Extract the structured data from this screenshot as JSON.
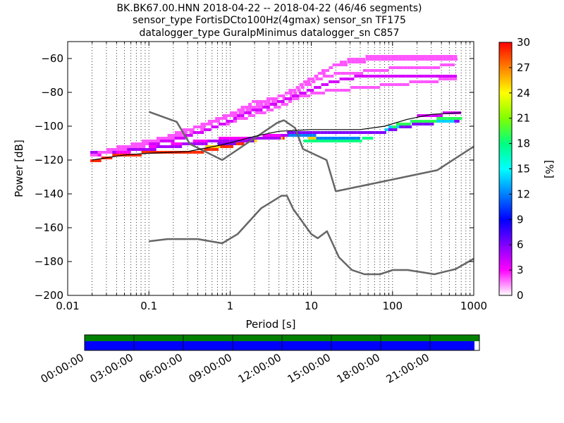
{
  "title_lines": [
    "BK.BK67.00.HNN   2018-04-22 -- 2018-04-22  (46/46 segments)",
    "sensor_type FortisDCto100Hz(4gmax) sensor_sn TF175",
    "datalogger_type GuralpMinimus datalogger_sn C857"
  ],
  "chart_data": {
    "type": "heatmap",
    "xlabel": "Period [s]",
    "ylabel": "Power [dB]",
    "x_scale": "log",
    "xlim": [
      0.01,
      1000
    ],
    "ylim": [
      -200,
      -50
    ],
    "x_ticks": [
      0.01,
      0.1,
      1,
      10,
      100,
      1000
    ],
    "x_tick_labels": [
      "0.01",
      "0.1",
      "1",
      "10",
      "100",
      "1000"
    ],
    "y_ticks": [
      -200,
      -180,
      -160,
      -140,
      -120,
      -100,
      -80,
      -60
    ],
    "y_tick_labels": [
      "−200",
      "−180",
      "−160",
      "−140",
      "−120",
      "−100",
      "−80",
      "−60"
    ],
    "grid": "dotted vertical lines at each minor log tick",
    "colorbar": {
      "label": "[%]",
      "min": 0,
      "max": 30,
      "ticks": [
        0,
        3,
        6,
        9,
        12,
        15,
        18,
        21,
        24,
        27,
        30
      ],
      "colors": [
        "#ffffff",
        "#ff00ff",
        "#8000ff",
        "#0000ff",
        "#0080ff",
        "#00ffff",
        "#00ff80",
        "#80ff00",
        "#ffff00",
        "#ff8000",
        "#ff0000"
      ]
    },
    "noise_models": [
      {
        "name": "NHNM",
        "color": "#666666",
        "x": [
          0.1,
          0.22,
          0.32,
          0.8,
          3.8,
          4.6,
          6.3,
          7.9,
          15.4,
          20,
          354.8,
          1000
        ],
        "y": [
          -91.5,
          -97.4,
          -110.5,
          -120,
          -98,
          -96.5,
          -101,
          -113.5,
          -120,
          -138.5,
          -126,
          -112
        ]
      },
      {
        "name": "NLNM",
        "color": "#666666",
        "x": [
          0.1,
          0.17,
          0.4,
          0.8,
          1.24,
          2.4,
          4.3,
          5,
          6,
          10,
          12,
          15.6,
          21.9,
          31.6,
          45,
          70,
          101,
          154,
          328,
          600,
          1000
        ],
        "y": [
          -168,
          -166.7,
          -166.7,
          -169.2,
          -163.7,
          -148.6,
          -141.1,
          -141.1,
          -149,
          -163.8,
          -166.2,
          -162.1,
          -177.5,
          -185,
          -187.5,
          -187.5,
          -185,
          -185,
          -187.5,
          -184.4,
          -178.3
        ]
      },
      {
        "name": "mode",
        "color": "#000000",
        "x": [
          0.02,
          0.05,
          0.1,
          0.3,
          0.8,
          2,
          4,
          10,
          40,
          80,
          150,
          300,
          700
        ],
        "y": [
          -120,
          -117,
          -116,
          -115,
          -111,
          -106,
          -103,
          -102,
          -102,
          -100,
          -96,
          -93,
          -92
        ]
      }
    ],
    "density_bands": [
      {
        "pct": 29,
        "x": [
          0.019,
          0.04,
          0.1,
          0.4,
          1,
          2,
          5,
          8
        ],
        "y": [
          -121,
          -117,
          -116,
          -115,
          -112,
          -108,
          -106,
          -106
        ]
      },
      {
        "pct": 25,
        "x": [
          0.5,
          1,
          2,
          5,
          8,
          12
        ],
        "y": [
          -113,
          -110,
          -108,
          -106,
          -106,
          -107
        ]
      },
      {
        "pct": 12,
        "x": [
          5,
          10,
          20,
          40
        ],
        "y": [
          -105,
          -106,
          -107,
          -107
        ]
      },
      {
        "pct": 18,
        "x": [
          8,
          12,
          20,
          40,
          60
        ],
        "y": [
          -108,
          -108,
          -109,
          -108,
          -106
        ]
      },
      {
        "pct": 6,
        "x": [
          0.7,
          1.5,
          3,
          6,
          10,
          20,
          40,
          80,
          150,
          300,
          700
        ],
        "y": [
          -111,
          -109,
          -106,
          -104,
          -104,
          -104,
          -104,
          -103,
          -100,
          -98,
          -97
        ]
      },
      {
        "pct": 14,
        "x": [
          80,
          150,
          300,
          700
        ],
        "y": [
          -102,
          -98,
          -97,
          -96
        ]
      },
      {
        "pct": 19,
        "x": [
          100,
          200,
          400,
          700
        ],
        "y": [
          -100,
          -97,
          -96,
          -95
        ]
      },
      {
        "pct": 4,
        "x": [
          200,
          400,
          700
        ],
        "y": [
          -94,
          -93,
          -92
        ]
      },
      {
        "pct": 3,
        "x": [
          0.019,
          0.05,
          0.1,
          0.3,
          0.7,
          1.5,
          3,
          5
        ],
        "y": [
          -117,
          -115,
          -113,
          -110,
          -108,
          -107,
          -106,
          -105
        ]
      },
      {
        "pct": 5,
        "x": [
          0.019,
          0.05,
          0.12,
          0.3,
          0.7,
          1.5,
          3,
          5
        ],
        "y": [
          -116,
          -114,
          -113,
          -111,
          -109,
          -108,
          -107,
          -106
        ]
      },
      {
        "pct": 2,
        "x": [
          0.019,
          0.04,
          0.1,
          0.2,
          0.5,
          1,
          2,
          4,
          7,
          12,
          30,
          80,
          200,
          600
        ],
        "y": [
          -117,
          -114,
          -111,
          -107,
          -102,
          -98,
          -93,
          -89,
          -83,
          -80,
          -78,
          -76,
          -74,
          -72
        ]
      },
      {
        "pct": 2,
        "x": [
          0.03,
          0.06,
          0.15,
          0.3,
          0.6,
          1.2,
          2.5,
          5,
          8,
          15,
          40,
          100,
          300,
          600
        ],
        "y": [
          -114,
          -112,
          -108,
          -103,
          -98,
          -93,
          -88,
          -84,
          -77,
          -70,
          -68,
          -66,
          -65,
          -64
        ]
      },
      {
        "pct": 2,
        "x": [
          0.04,
          0.1,
          0.25,
          0.6,
          1.5,
          3,
          6,
          10,
          20,
          50,
          150,
          400,
          600
        ],
        "y": [
          -113,
          -110,
          -104,
          -97,
          -90,
          -85,
          -79,
          -72,
          -64,
          -61,
          -61,
          -61,
          -61
        ]
      },
      {
        "pct": 2,
        "x": [
          0.06,
          0.15,
          0.4,
          1,
          2,
          4,
          8,
          15,
          30,
          80,
          200,
          600
        ],
        "y": [
          -111,
          -107,
          -100,
          -93,
          -86,
          -83,
          -75,
          -67,
          -60,
          -59,
          -59,
          -59
        ]
      },
      {
        "pct": 4,
        "x": [
          0.1,
          0.3,
          0.7,
          1.5,
          3,
          6,
          12,
          25,
          60,
          150,
          400,
          650
        ],
        "y": [
          -111,
          -106,
          -100,
          -93,
          -88,
          -83,
          -77,
          -72,
          -70,
          -70,
          -70,
          -70
        ]
      }
    ]
  },
  "timeline": {
    "labels": [
      "00:00:00",
      "03:00:00",
      "06:00:00",
      "09:00:00",
      "12:00:00",
      "15:00:00",
      "18:00:00",
      "21:00:00"
    ],
    "total_hours": 24,
    "data_end_hours": 23.7,
    "top_color": "#008000",
    "bottom_color": "#0000ff"
  }
}
